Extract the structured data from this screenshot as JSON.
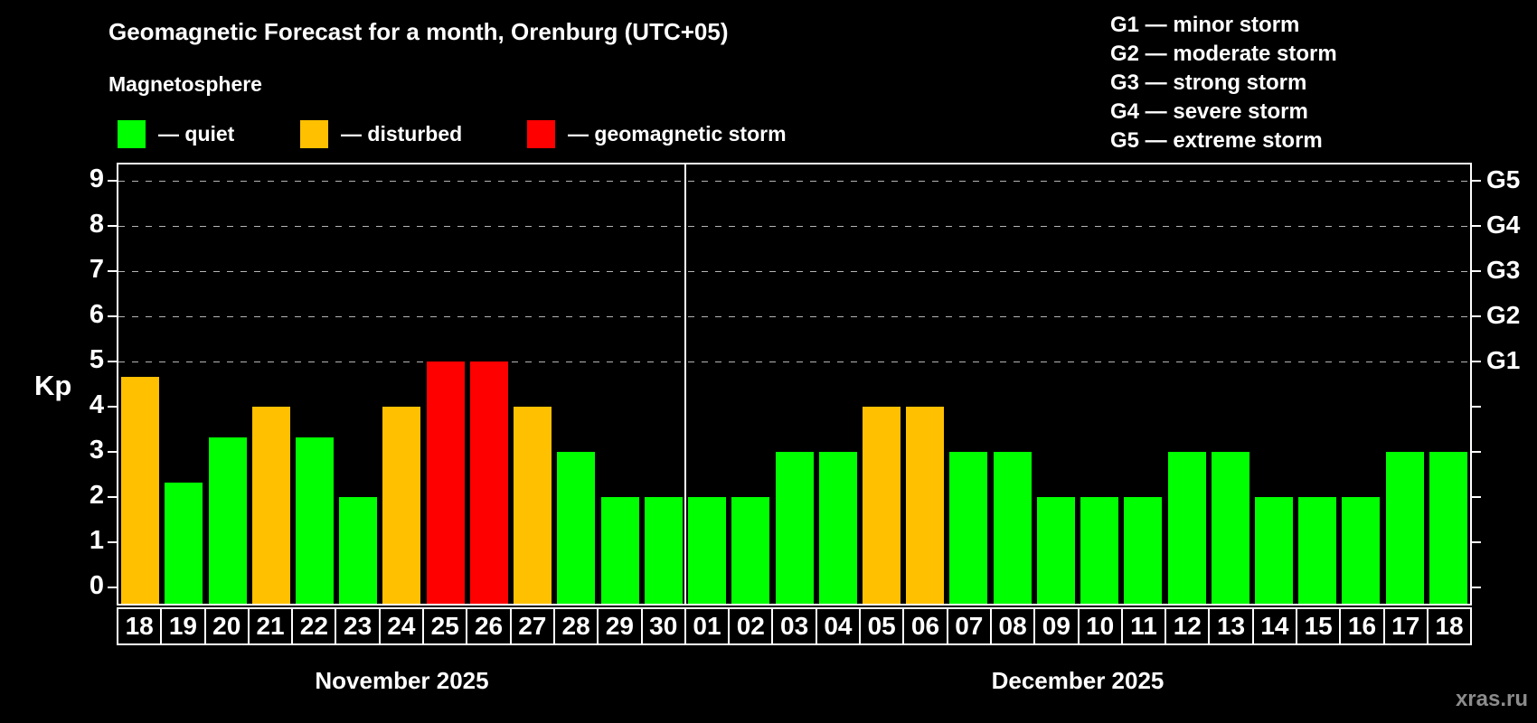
{
  "title": "Geomagnetic Forecast for a month, Orenburg (UTC+05)",
  "subtitle": "Magnetosphere",
  "legend": {
    "items": [
      {
        "key": "quiet",
        "label": "— quiet",
        "color": "#00ff00"
      },
      {
        "key": "disturbed",
        "label": "— disturbed",
        "color": "#ffc000"
      },
      {
        "key": "storm",
        "label": "— geomagnetic storm",
        "color": "#ff0000"
      }
    ]
  },
  "storm_scale_legend": [
    "G1 — minor storm",
    "G2 — moderate storm",
    "G3 — strong storm",
    "G4 — severe storm",
    "G5 — extreme storm"
  ],
  "watermark": "xras.ru",
  "chart_data": {
    "type": "bar",
    "title": "Geomagnetic Forecast for a month, Orenburg (UTC+05)",
    "ylabel": "Kp",
    "ylim": [
      0,
      9
    ],
    "yticks": [
      0,
      1,
      2,
      3,
      4,
      5,
      6,
      7,
      8,
      9
    ],
    "gridlines_at_kp": [
      5,
      6,
      7,
      8,
      9
    ],
    "grid_style": "dashed-horizontal-only",
    "right_axis_labels": [
      {
        "kp": 5,
        "label": "G1"
      },
      {
        "kp": 6,
        "label": "G2"
      },
      {
        "kp": 7,
        "label": "G3"
      },
      {
        "kp": 8,
        "label": "G4"
      },
      {
        "kp": 9,
        "label": "G5"
      }
    ],
    "months": [
      {
        "label": "November 2025",
        "days": 13
      },
      {
        "label": "December 2025",
        "days": 18
      }
    ],
    "categories": [
      "18",
      "19",
      "20",
      "21",
      "22",
      "23",
      "24",
      "25",
      "26",
      "27",
      "28",
      "29",
      "30",
      "01",
      "02",
      "03",
      "04",
      "05",
      "06",
      "07",
      "08",
      "09",
      "10",
      "11",
      "12",
      "13",
      "14",
      "15",
      "16",
      "17",
      "18"
    ],
    "values": [
      4.67,
      2.33,
      3.33,
      4,
      3.33,
      2,
      4,
      5,
      5,
      4,
      3,
      2,
      2,
      2,
      2,
      3,
      3,
      4,
      4,
      3,
      3,
      2,
      2,
      2,
      3,
      3,
      2,
      2,
      2,
      3,
      3
    ],
    "statuses": [
      "disturbed",
      "quiet",
      "quiet",
      "disturbed",
      "quiet",
      "quiet",
      "disturbed",
      "storm",
      "storm",
      "disturbed",
      "quiet",
      "quiet",
      "quiet",
      "quiet",
      "quiet",
      "quiet",
      "quiet",
      "disturbed",
      "disturbed",
      "quiet",
      "quiet",
      "quiet",
      "quiet",
      "quiet",
      "quiet",
      "quiet",
      "quiet",
      "quiet",
      "quiet",
      "quiet",
      "quiet"
    ],
    "status_colors": {
      "quiet": "#00ff00",
      "disturbed": "#ffc000",
      "storm": "#ff0000"
    },
    "legend_position": "top"
  }
}
